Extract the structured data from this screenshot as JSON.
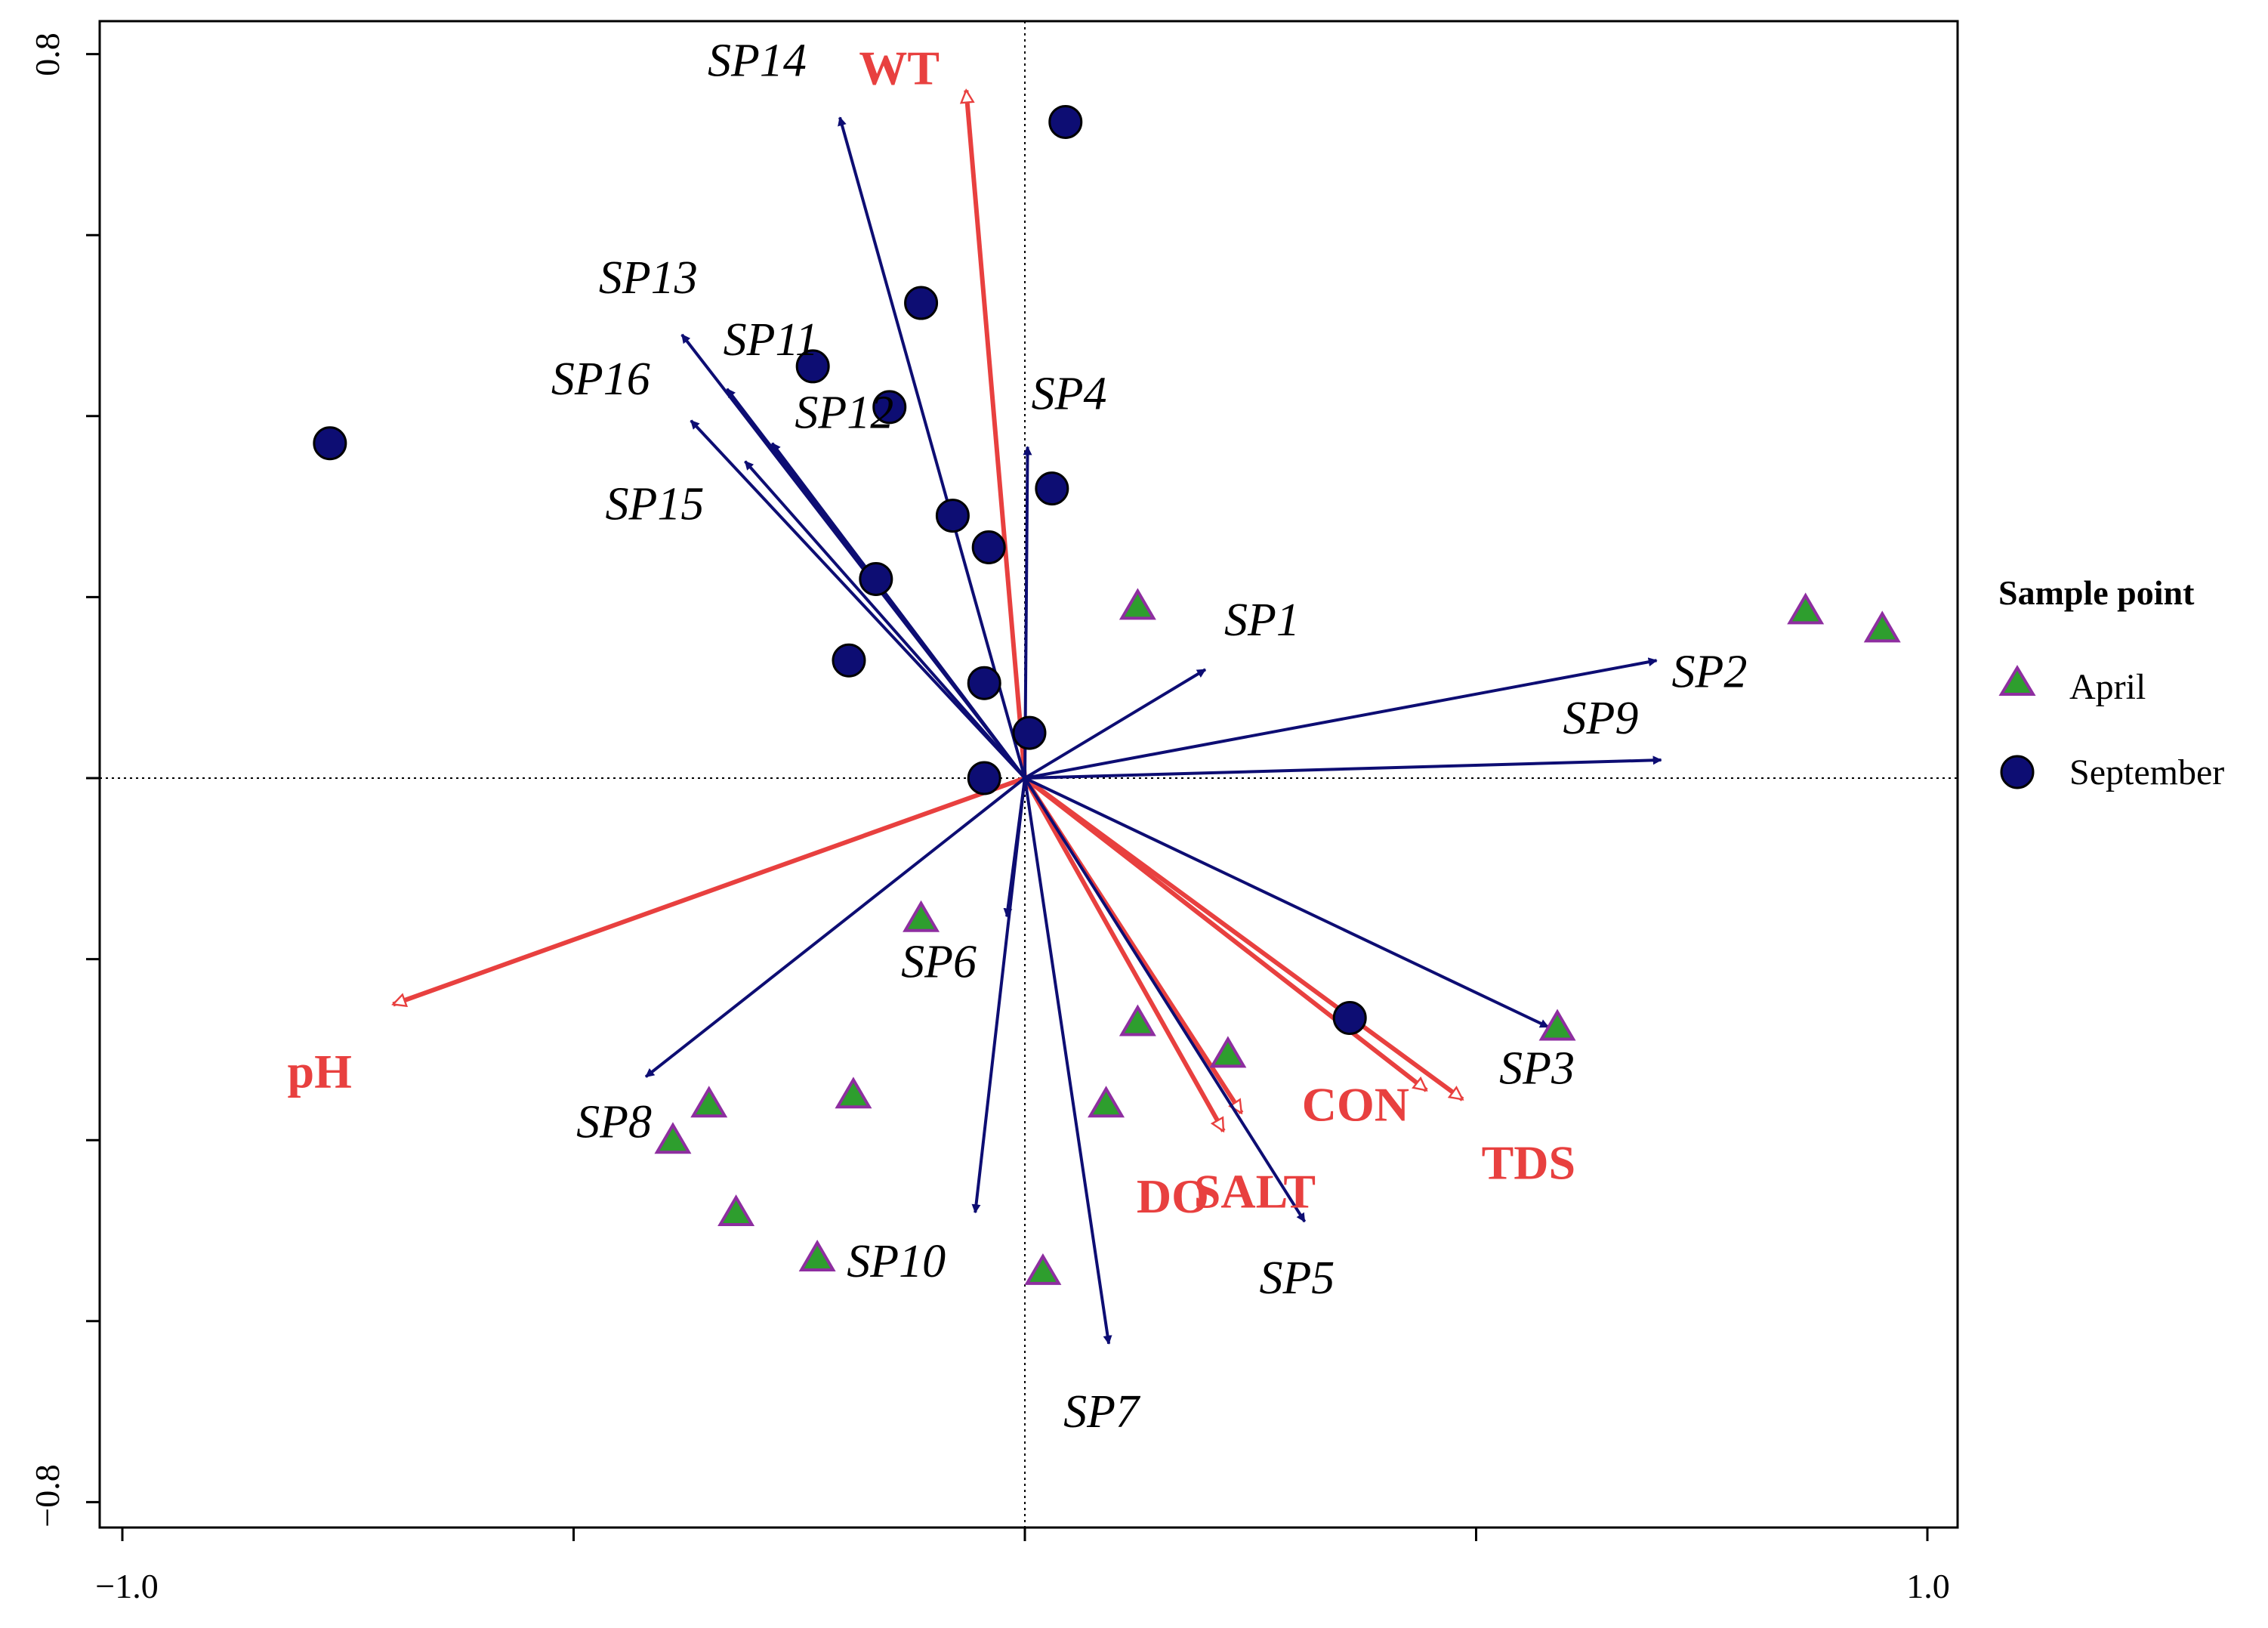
{
  "chart_data": {
    "type": "scatter",
    "subtype": "biplot",
    "xlim": [
      -1.0,
      1.0
    ],
    "ylim": [
      -0.8,
      0.8
    ],
    "x_ticks": [
      -1.0,
      -0.5,
      0.0,
      0.5,
      1.0
    ],
    "x_tick_labels": [
      "−1.0",
      "1.0"
    ],
    "y_ticks": [
      -0.8,
      -0.6,
      -0.4,
      -0.2,
      0.0,
      0.2,
      0.4,
      0.6,
      0.8
    ],
    "y_tick_labels": [
      "−0.8",
      "0.8"
    ],
    "zero_lines": true,
    "species_color": "#0d0d73",
    "env_color": "#e8403f",
    "species_vectors": [
      {
        "label": "SP1",
        "x": 0.2,
        "y": 0.12
      },
      {
        "label": "SP2",
        "x": 0.7,
        "y": 0.13
      },
      {
        "label": "SP3",
        "x": 0.58,
        "y": -0.275
      },
      {
        "label": "SP4",
        "x": 0.003,
        "y": 0.366
      },
      {
        "label": "SP5",
        "x": 0.31,
        "y": -0.49
      },
      {
        "label": "SP6",
        "x": -0.02,
        "y": -0.153
      },
      {
        "label": "SP7",
        "x": 0.093,
        "y": -0.625
      },
      {
        "label": "SP8",
        "x": -0.42,
        "y": -0.33
      },
      {
        "label": "SP9",
        "x": 0.705,
        "y": 0.02
      },
      {
        "label": "SP10",
        "x": -0.055,
        "y": -0.48
      },
      {
        "label": "SP11",
        "x": -0.33,
        "y": 0.43
      },
      {
        "label": "SP12",
        "x": -0.28,
        "y": 0.37
      },
      {
        "label": "SP13",
        "x": -0.38,
        "y": 0.49
      },
      {
        "label": "SP14",
        "x": -0.205,
        "y": 0.73
      },
      {
        "label": "SP15",
        "x": -0.31,
        "y": 0.35
      },
      {
        "label": "SP16",
        "x": -0.37,
        "y": 0.395
      }
    ],
    "env_vectors": [
      {
        "label": "WT",
        "x": -0.065,
        "y": 0.76
      },
      {
        "label": "pH",
        "x": -0.7,
        "y": -0.25
      },
      {
        "label": "DO",
        "x": 0.22,
        "y": -0.39
      },
      {
        "label": "SALT",
        "x": 0.24,
        "y": -0.37
      },
      {
        "label": "CON",
        "x": 0.445,
        "y": -0.345
      },
      {
        "label": "TDS",
        "x": 0.485,
        "y": -0.355
      }
    ],
    "series": [
      {
        "name": "April",
        "marker": "triangle",
        "fill": "#2e9e2e",
        "stroke": "#8e2ea0",
        "points": [
          [
            0.125,
            0.19
          ],
          [
            0.865,
            0.185
          ],
          [
            0.95,
            0.165
          ],
          [
            0.59,
            -0.275
          ],
          [
            0.125,
            -0.27
          ],
          [
            0.225,
            -0.305
          ],
          [
            0.09,
            -0.36
          ],
          [
            -0.115,
            -0.155
          ],
          [
            -0.35,
            -0.36
          ],
          [
            -0.19,
            -0.35
          ],
          [
            -0.39,
            -0.4
          ],
          [
            -0.32,
            -0.48
          ],
          [
            -0.23,
            -0.53
          ],
          [
            0.02,
            -0.545
          ]
        ]
      },
      {
        "name": "September",
        "marker": "circle",
        "fill": "#0d0d73",
        "stroke": "#000000",
        "points": [
          [
            0.045,
            0.725
          ],
          [
            -0.77,
            0.37
          ],
          [
            -0.115,
            0.525
          ],
          [
            -0.235,
            0.455
          ],
          [
            -0.15,
            0.41
          ],
          [
            0.03,
            0.32
          ],
          [
            -0.08,
            0.29
          ],
          [
            -0.04,
            0.255
          ],
          [
            -0.165,
            0.22
          ],
          [
            -0.195,
            0.13
          ],
          [
            -0.045,
            0.105
          ],
          [
            0.005,
            0.05
          ],
          [
            -0.045,
            0.0
          ],
          [
            0.36,
            -0.265
          ]
        ]
      }
    ],
    "legend": {
      "title": "Sample point",
      "position": "right",
      "items": [
        "April",
        "September"
      ]
    }
  }
}
